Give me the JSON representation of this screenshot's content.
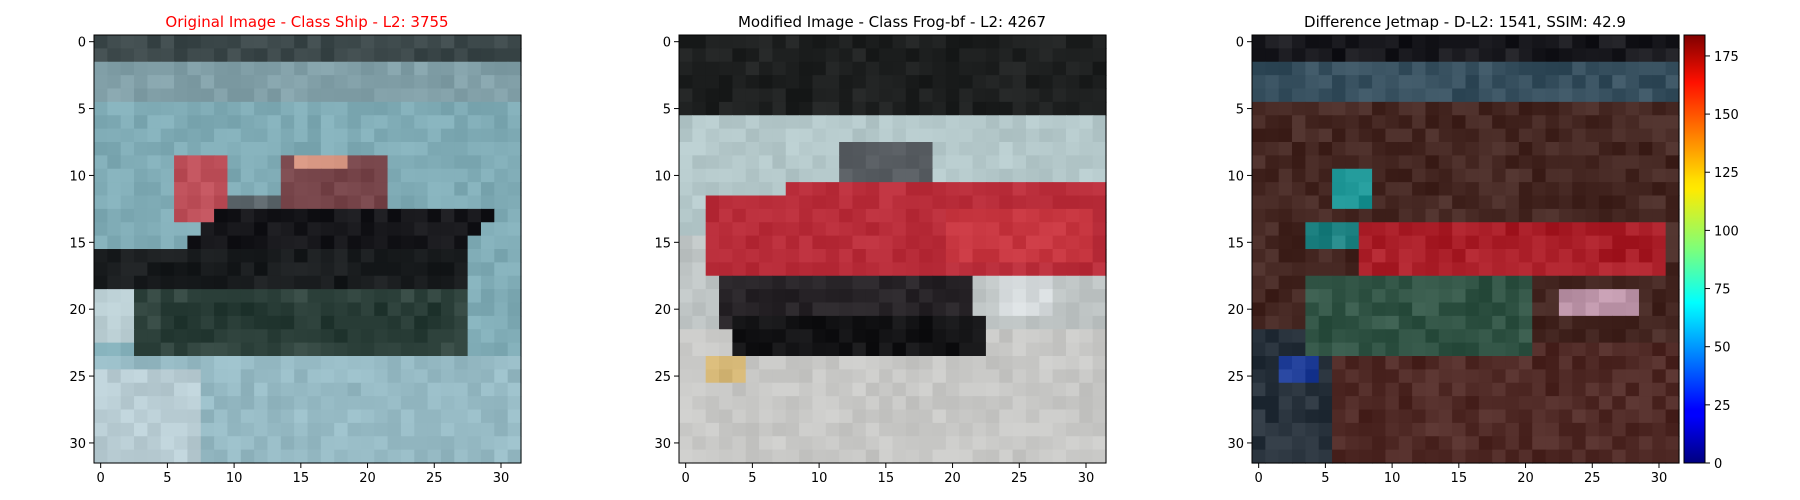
{
  "chart_data": [
    {
      "type": "heatmap",
      "title": "Original Image - Class Ship - L2: 3755",
      "title_color": "#ff0000",
      "image_content": "ship",
      "xlim": [
        -0.5,
        31.5
      ],
      "ylim": [
        31.5,
        -0.5
      ],
      "x_ticks": [
        "0",
        "5",
        "10",
        "15",
        "20",
        "25",
        "30"
      ],
      "y_ticks": [
        "0",
        "5",
        "10",
        "15",
        "20",
        "25",
        "30"
      ]
    },
    {
      "type": "heatmap",
      "title": "Modified Image - Class Frog-bf - L2: 4267",
      "title_color": "#000000",
      "image_content": "red-car",
      "xlim": [
        -0.5,
        31.5
      ],
      "ylim": [
        31.5,
        -0.5
      ],
      "x_ticks": [
        "0",
        "5",
        "10",
        "15",
        "20",
        "25",
        "30"
      ],
      "y_ticks": [
        "0",
        "5",
        "10",
        "15",
        "20",
        "25",
        "30"
      ]
    },
    {
      "type": "heatmap",
      "title": "Difference Jetmap - D-L2: 1541, SSIM: 42.9",
      "title_color": "#000000",
      "image_content": "difference",
      "colormap": "jet",
      "xlim": [
        -0.5,
        31.5
      ],
      "ylim": [
        31.5,
        -0.5
      ],
      "x_ticks": [
        "0",
        "5",
        "10",
        "15",
        "20",
        "25",
        "30"
      ],
      "y_ticks": [
        "0",
        "5",
        "10",
        "15",
        "20",
        "25",
        "30"
      ],
      "colorbar": {
        "range": [
          0,
          184
        ],
        "ticks": [
          "0",
          "25",
          "50",
          "75",
          "100",
          "125",
          "150",
          "175"
        ]
      }
    }
  ]
}
